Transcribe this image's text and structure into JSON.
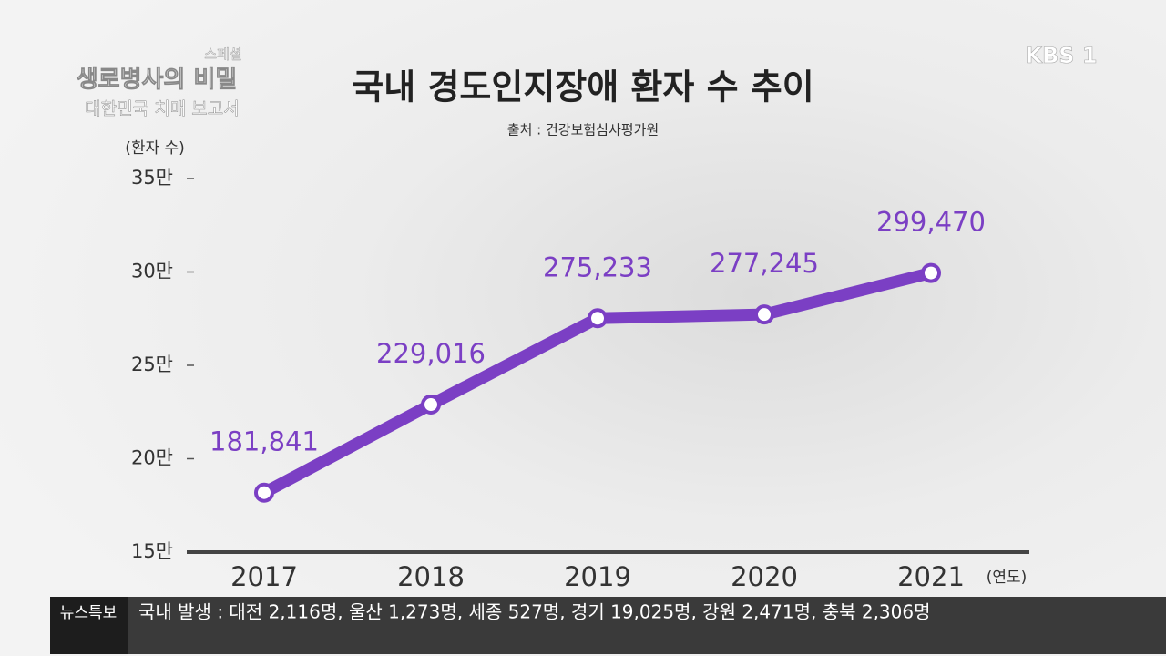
{
  "chart_data": {
    "type": "line",
    "title": "국내 경도인지장애 환자 수 추이",
    "subtitle": "출처 : 건강보험심사평가원",
    "y_label": "(환자 수)",
    "x_label": "(연도)",
    "categories": [
      "2017",
      "2018",
      "2019",
      "2020",
      "2021"
    ],
    "values": [
      181841,
      229016,
      275233,
      277245,
      299470
    ],
    "value_labels": [
      "181,841",
      "229,016",
      "275,233",
      "277,245",
      "299,470"
    ],
    "color": "#7b3fc4",
    "ylim": [
      150000,
      350000
    ],
    "yticks": [
      {
        "value": 150000,
        "label": "15만"
      },
      {
        "value": 200000,
        "label": "20만"
      },
      {
        "value": 250000,
        "label": "25만"
      },
      {
        "value": 300000,
        "label": "30만"
      },
      {
        "value": 350000,
        "label": "35만"
      }
    ]
  },
  "overlay": {
    "program_tag": "스페셜",
    "program_title": "생로병사의 비밀",
    "program_subtitle": "대한민국 치매 보고서",
    "channel": "KBS 1",
    "ticker_label": "뉴스특보",
    "ticker_text": "국내 발생 : 대전 2,116명, 울산 1,273명, 세종 527명, 경기 19,025명, 강원 2,471명, 충북 2,306명"
  }
}
